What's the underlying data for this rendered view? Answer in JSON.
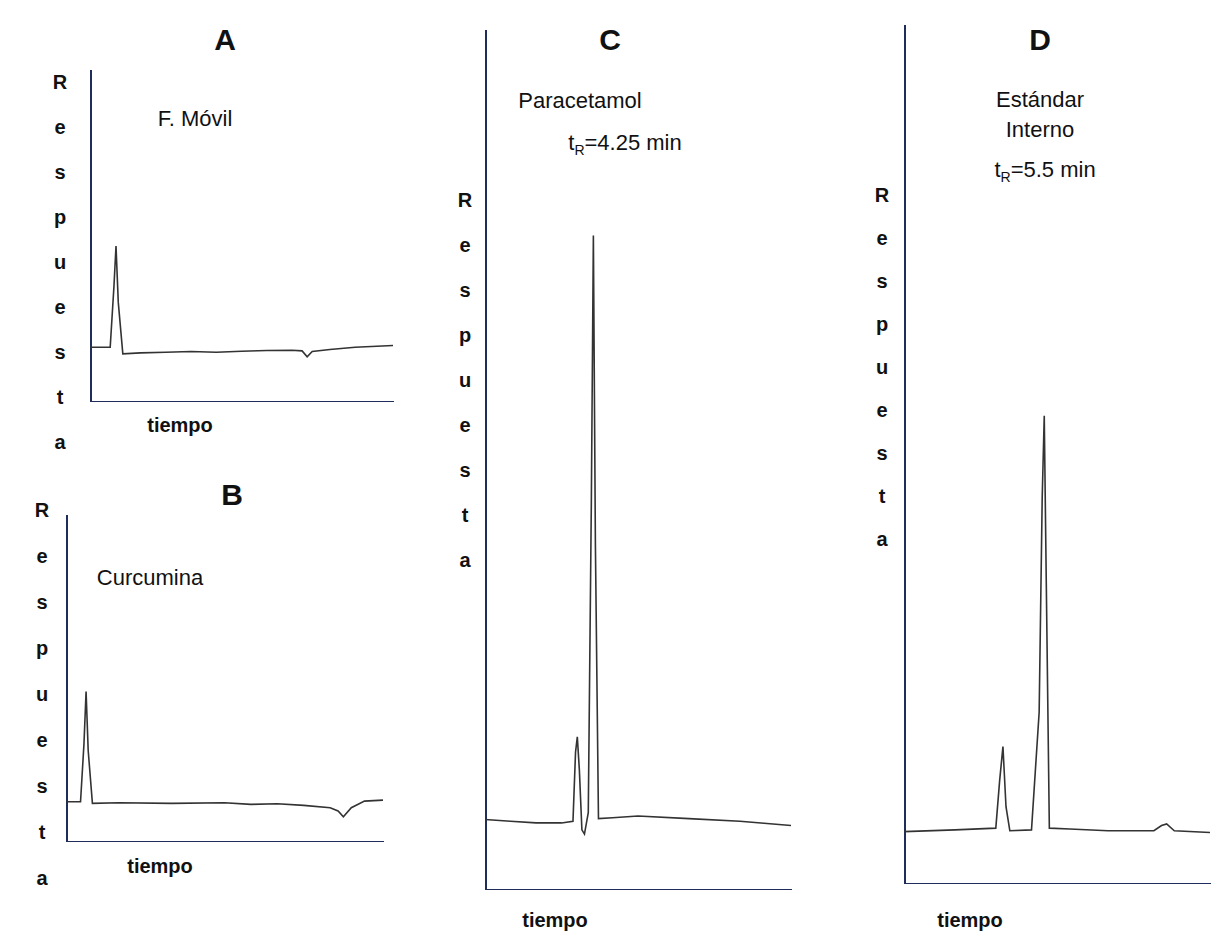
{
  "chart_data": [
    {
      "type": "line",
      "title": "A",
      "annotations": [
        {
          "parts": [
            {
              "text": "F. Móvil"
            }
          ]
        }
      ],
      "x_label": "tiempo",
      "y_label": "Respuesta",
      "x": [
        0,
        0.8,
        0.95,
        1.03,
        1.12,
        1.3,
        2,
        3,
        4,
        5,
        6,
        7,
        8,
        8.4,
        8.6,
        8.8,
        9.5,
        10.5,
        12
      ],
      "values": [
        16.5,
        16.5,
        35,
        47,
        30,
        14.5,
        14.8,
        15,
        15.2,
        15,
        15.3,
        15.5,
        15.6,
        15.4,
        13.6,
        15.2,
        15.8,
        16.5,
        17
      ],
      "color": "#333333",
      "xlim": [
        0,
        12
      ],
      "ylim": [
        0,
        100
      ],
      "tick_labels": false,
      "grid": false
    },
    {
      "type": "line",
      "title": "B",
      "annotations": [
        {
          "parts": [
            {
              "text": "Curcumina"
            }
          ]
        }
      ],
      "x_label": "tiempo",
      "y_label": "Respuesta",
      "x": [
        0,
        0.55,
        0.68,
        0.76,
        0.84,
        1.0,
        2,
        4,
        6,
        7,
        8,
        9,
        10,
        10.3,
        10.5,
        10.8,
        11.3,
        12
      ],
      "values": [
        12.3,
        12.3,
        30,
        46,
        28,
        11.8,
        12,
        11.8,
        12,
        11.5,
        11.7,
        11.2,
        10.5,
        9.5,
        7.7,
        10.5,
        12.5,
        12.8
      ],
      "color": "#333333",
      "xlim": [
        0,
        12
      ],
      "ylim": [
        0,
        100
      ],
      "tick_labels": false,
      "grid": false
    },
    {
      "type": "line",
      "title": "C",
      "annotations": [
        {
          "parts": [
            {
              "text": "Paracetamol"
            }
          ]
        },
        {
          "parts": [
            {
              "text": "t"
            },
            {
              "text": "R",
              "subscript": true
            },
            {
              "text": "=4.25 min"
            }
          ]
        }
      ],
      "x_label": "tiempo",
      "y_label": "Respuesta",
      "x": [
        0,
        1,
        2,
        3,
        3.45,
        3.55,
        3.62,
        3.7,
        3.8,
        3.9,
        4.05,
        4.17,
        4.25,
        4.33,
        4.45,
        5,
        6,
        8,
        10,
        12
      ],
      "values": [
        8.2,
        8.0,
        7.8,
        7.8,
        8.0,
        16,
        17.8,
        14,
        7,
        6.5,
        9,
        45,
        76.1,
        40,
        8.3,
        8.4,
        8.6,
        8.3,
        8.0,
        7.5
      ],
      "color": "#333333",
      "xlim": [
        0,
        12
      ],
      "ylim": [
        0,
        100
      ],
      "tick_labels": false,
      "grid": false
    },
    {
      "type": "line",
      "title": "D",
      "annotations": [
        {
          "parts": [
            {
              "text": "Estándar Interno"
            }
          ]
        },
        {
          "parts": [
            {
              "text": "t"
            },
            {
              "text": "R",
              "subscript": true
            },
            {
              "text": "=5.5 min"
            }
          ]
        }
      ],
      "x_label": "tiempo",
      "y_label": "Respuesta",
      "x": [
        0,
        2,
        3.6,
        3.75,
        3.88,
        4.0,
        4.15,
        5.0,
        5.3,
        5.42,
        5.5,
        5.58,
        5.7,
        6.5,
        8,
        9.8,
        10.1,
        10.3,
        10.6,
        12
      ],
      "values": [
        6.1,
        6.3,
        6.5,
        12,
        16,
        9,
        6.2,
        6.3,
        20,
        45,
        54.5,
        35,
        6.5,
        6.4,
        6.2,
        6.2,
        6.8,
        7,
        6.2,
        6.0
      ],
      "color": "#333333",
      "xlim": [
        0,
        12
      ],
      "ylim": [
        0,
        100
      ],
      "tick_labels": false,
      "grid": false
    }
  ]
}
